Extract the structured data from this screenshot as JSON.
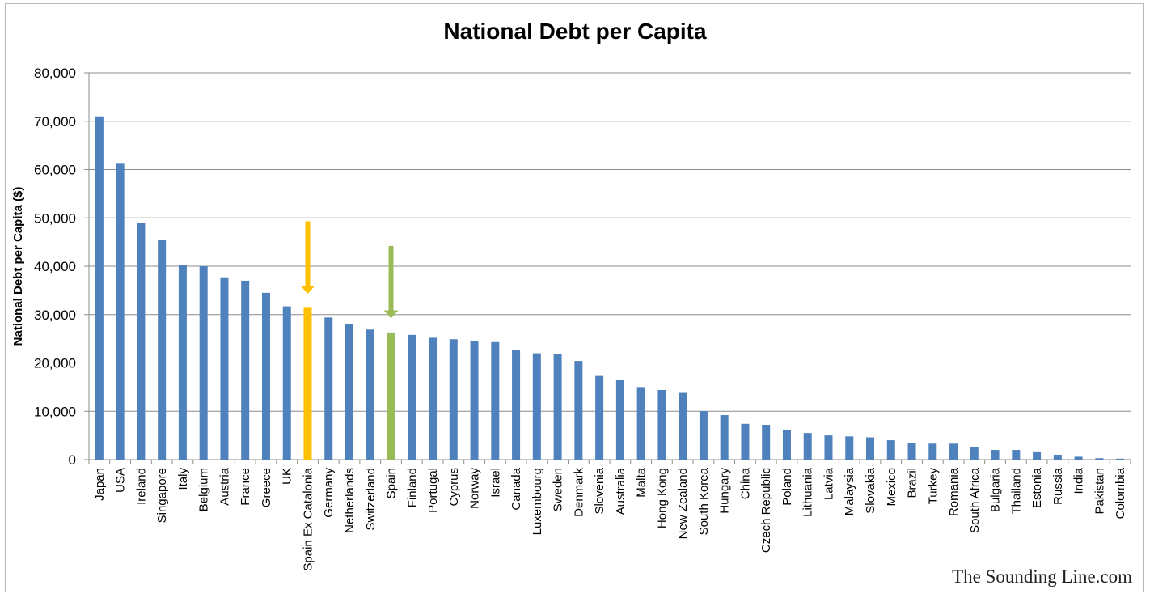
{
  "chart_data": {
    "type": "bar",
    "title": "National Debt per Capita",
    "xlabel": "",
    "ylabel": "National Debt per Capita ($)",
    "ylim": [
      0,
      80000
    ],
    "yticks": [
      0,
      10000,
      20000,
      30000,
      40000,
      50000,
      60000,
      70000,
      80000
    ],
    "ytick_labels": [
      "0",
      "10,000",
      "20,000",
      "30,000",
      "40,000",
      "50,000",
      "60,000",
      "70,000",
      "80,000"
    ],
    "grid": true,
    "categories": [
      "Japan",
      "USA",
      "Ireland",
      "Singapore",
      "Italy",
      "Belgium",
      "Austria",
      "France",
      "Greece",
      "UK",
      "Spain Ex Catalonia",
      "Germany",
      "Netherlands",
      "Switzerland",
      "Spain",
      "Finland",
      "Portugal",
      "Cyprus",
      "Norway",
      "Israel",
      "Canada",
      "Luxembourg",
      "Sweden",
      "Denmark",
      "Slovenia",
      "Australia",
      "Malta",
      "Hong Kong",
      "New Zealand",
      "South Korea",
      "Hungary",
      "China",
      "Czech Republic",
      "Poland",
      "Lithuania",
      "Latvia",
      "Malaysia",
      "Slovakia",
      "Mexico",
      "Brazil",
      "Turkey",
      "Romania",
      "South Africa",
      "Bulgaria",
      "Thailand",
      "Estonia",
      "Russia",
      "India",
      "Pakistan",
      "Colombia"
    ],
    "values": [
      71000,
      61200,
      49000,
      45500,
      40200,
      40000,
      37700,
      37000,
      34500,
      31700,
      31400,
      29400,
      28000,
      26900,
      26300,
      25800,
      25200,
      24900,
      24600,
      24300,
      22600,
      22000,
      21800,
      20400,
      17300,
      16400,
      15000,
      14400,
      13800,
      10000,
      9200,
      7400,
      7200,
      6200,
      5500,
      5000,
      4800,
      4600,
      4000,
      3500,
      3300,
      3300,
      2600,
      2000,
      2000,
      1700,
      1000,
      600,
      300,
      200
    ],
    "colors": {
      "default": "#4f81bd",
      "Spain Ex Catalonia": "#ffc000",
      "Spain": "#9bbb59",
      "grid": "#8c8c8c",
      "axis": "#8c8c8c"
    },
    "annotations": [
      {
        "type": "arrow",
        "category": "Spain Ex Catalonia",
        "color": "#ffc000",
        "from_value": 49300,
        "to_value": 34300
      },
      {
        "type": "arrow",
        "category": "Spain",
        "color": "#9bbb59",
        "from_value": 44200,
        "to_value": 29200
      }
    ]
  },
  "watermark": "The Sounding Line.com"
}
